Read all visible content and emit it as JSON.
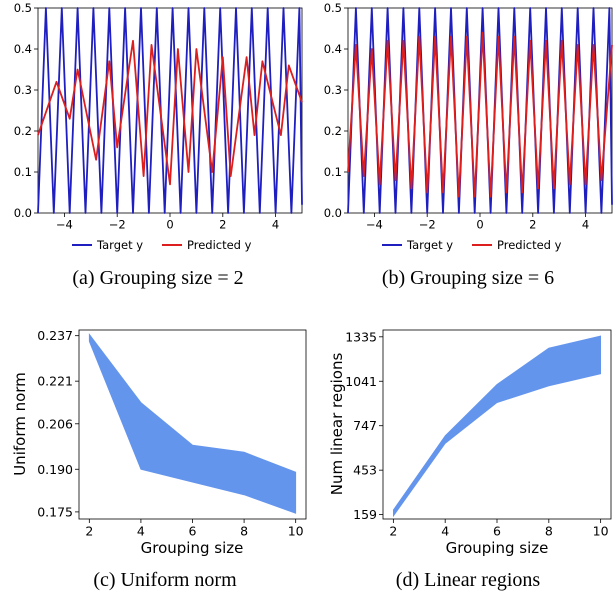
{
  "captions": {
    "a": "(a) Grouping size = 2",
    "b": "(b) Grouping size = 6",
    "c": "(c) Uniform norm",
    "d": "(d) Linear regions"
  },
  "colors": {
    "target": "#1f1fbf",
    "predicted": "#dc1e1e",
    "band": "#6495ed"
  },
  "chart_data": [
    {
      "type": "line",
      "panel": "a",
      "xlim": [
        -5,
        5
      ],
      "ylim": [
        0,
        0.5
      ],
      "xticks": [
        "−4",
        "−2",
        "0",
        "2",
        "4"
      ],
      "yticks": [
        "0.0",
        "0.1",
        "0.2",
        "0.3",
        "0.4",
        "0.5"
      ],
      "legend": [
        "Target y",
        "Predicted y"
      ],
      "legend_position": "bottom",
      "series": [
        {
          "name": "Target y",
          "x": [
            -5,
            -4.7,
            -4.4,
            -4.1,
            -3.8,
            -3.5,
            -3.2,
            -2.9,
            -2.6,
            -2.3,
            -2.0,
            -1.7,
            -1.4,
            -1.1,
            -0.8,
            -0.5,
            -0.2,
            0.1,
            0.4,
            0.7,
            1.0,
            1.3,
            1.6,
            1.9,
            2.2,
            2.5,
            2.8,
            3.1,
            3.4,
            3.7,
            4.0,
            4.3,
            4.6,
            4.9,
            5.0
          ],
          "y": [
            0.0,
            0.5,
            0.0,
            0.5,
            0.0,
            0.5,
            0.0,
            0.5,
            0.0,
            0.5,
            0.0,
            0.5,
            0.0,
            0.5,
            0.0,
            0.5,
            0.0,
            0.5,
            0.0,
            0.5,
            0.0,
            0.5,
            0.0,
            0.5,
            0.0,
            0.5,
            0.0,
            0.5,
            0.0,
            0.5,
            0.0,
            0.5,
            0.0,
            0.5,
            0.02
          ]
        },
        {
          "name": "Predicted y",
          "x": [
            -5.0,
            -4.3,
            -3.8,
            -3.5,
            -2.8,
            -2.3,
            -2.0,
            -1.4,
            -1.0,
            -0.7,
            0.0,
            0.3,
            0.7,
            1.0,
            1.6,
            2.0,
            2.3,
            2.9,
            3.2,
            3.5,
            4.2,
            4.5,
            5.0
          ],
          "y": [
            0.19,
            0.32,
            0.23,
            0.35,
            0.13,
            0.37,
            0.16,
            0.42,
            0.09,
            0.41,
            0.07,
            0.4,
            0.1,
            0.4,
            0.1,
            0.38,
            0.09,
            0.38,
            0.19,
            0.37,
            0.19,
            0.36,
            0.27
          ]
        }
      ]
    },
    {
      "type": "line",
      "panel": "b",
      "xlim": [
        -5,
        5
      ],
      "ylim": [
        0,
        0.5
      ],
      "xticks": [
        "−4",
        "−2",
        "0",
        "2",
        "4"
      ],
      "yticks": [
        "0.0",
        "0.1",
        "0.2",
        "0.3",
        "0.4",
        "0.5"
      ],
      "legend": [
        "Target y",
        "Predicted y"
      ],
      "legend_position": "bottom",
      "series": [
        {
          "name": "Target y",
          "x": [
            -5,
            -4.7,
            -4.4,
            -4.1,
            -3.8,
            -3.5,
            -3.2,
            -2.9,
            -2.6,
            -2.3,
            -2.0,
            -1.7,
            -1.4,
            -1.1,
            -0.8,
            -0.5,
            -0.2,
            0.1,
            0.4,
            0.7,
            1.0,
            1.3,
            1.6,
            1.9,
            2.2,
            2.5,
            2.8,
            3.1,
            3.4,
            3.7,
            4.0,
            4.3,
            4.6,
            4.9,
            5.0
          ],
          "y": [
            0.0,
            0.5,
            0.0,
            0.5,
            0.0,
            0.5,
            0.0,
            0.5,
            0.0,
            0.5,
            0.0,
            0.5,
            0.0,
            0.5,
            0.0,
            0.5,
            0.0,
            0.5,
            0.0,
            0.5,
            0.0,
            0.5,
            0.0,
            0.5,
            0.0,
            0.5,
            0.0,
            0.5,
            0.0,
            0.5,
            0.0,
            0.5,
            0.0,
            0.5,
            0.02
          ]
        },
        {
          "name": "Predicted y",
          "x": [
            -5.0,
            -4.7,
            -4.4,
            -4.1,
            -3.8,
            -3.5,
            -3.2,
            -2.9,
            -2.6,
            -2.3,
            -2.0,
            -1.7,
            -1.4,
            -1.1,
            -0.8,
            -0.5,
            -0.2,
            0.1,
            0.4,
            0.7,
            1.0,
            1.3,
            1.6,
            1.9,
            2.2,
            2.5,
            2.8,
            3.1,
            3.4,
            3.7,
            4.0,
            4.3,
            4.6,
            5.0
          ],
          "y": [
            0.1,
            0.41,
            0.09,
            0.4,
            0.07,
            0.42,
            0.08,
            0.42,
            0.06,
            0.43,
            0.05,
            0.43,
            0.05,
            0.43,
            0.04,
            0.43,
            0.04,
            0.44,
            0.04,
            0.43,
            0.05,
            0.43,
            0.05,
            0.42,
            0.06,
            0.42,
            0.06,
            0.42,
            0.07,
            0.41,
            0.07,
            0.41,
            0.08,
            0.41
          ]
        }
      ]
    },
    {
      "type": "area",
      "panel": "c",
      "xlabel": "Grouping size",
      "ylabel": "Uniform norm",
      "xlim": [
        1.6,
        10.4
      ],
      "ylim": [
        0.1725,
        0.239
      ],
      "xticks": [
        "2",
        "4",
        "6",
        "8",
        "10"
      ],
      "yticks": [
        "0.175",
        "0.190",
        "0.206",
        "0.221",
        "0.237"
      ],
      "x": [
        2,
        4,
        6,
        8,
        10
      ],
      "upper": [
        0.2375,
        0.2135,
        0.1985,
        0.196,
        0.189
      ],
      "lower": [
        0.235,
        0.19,
        0.1855,
        0.181,
        0.1745
      ]
    },
    {
      "type": "area",
      "panel": "d",
      "xlabel": "Grouping size",
      "ylabel": "Num linear regions",
      "xlim": [
        1.6,
        10.4
      ],
      "ylim": [
        130,
        1380
      ],
      "xticks": [
        "2",
        "4",
        "6",
        "8",
        "10"
      ],
      "yticks": [
        "159",
        "453",
        "747",
        "1041",
        "1335"
      ],
      "x": [
        2,
        4,
        6,
        8,
        10
      ],
      "upper": [
        190,
        680,
        1020,
        1260,
        1340
      ],
      "lower": [
        150,
        630,
        900,
        1010,
        1090
      ]
    }
  ]
}
